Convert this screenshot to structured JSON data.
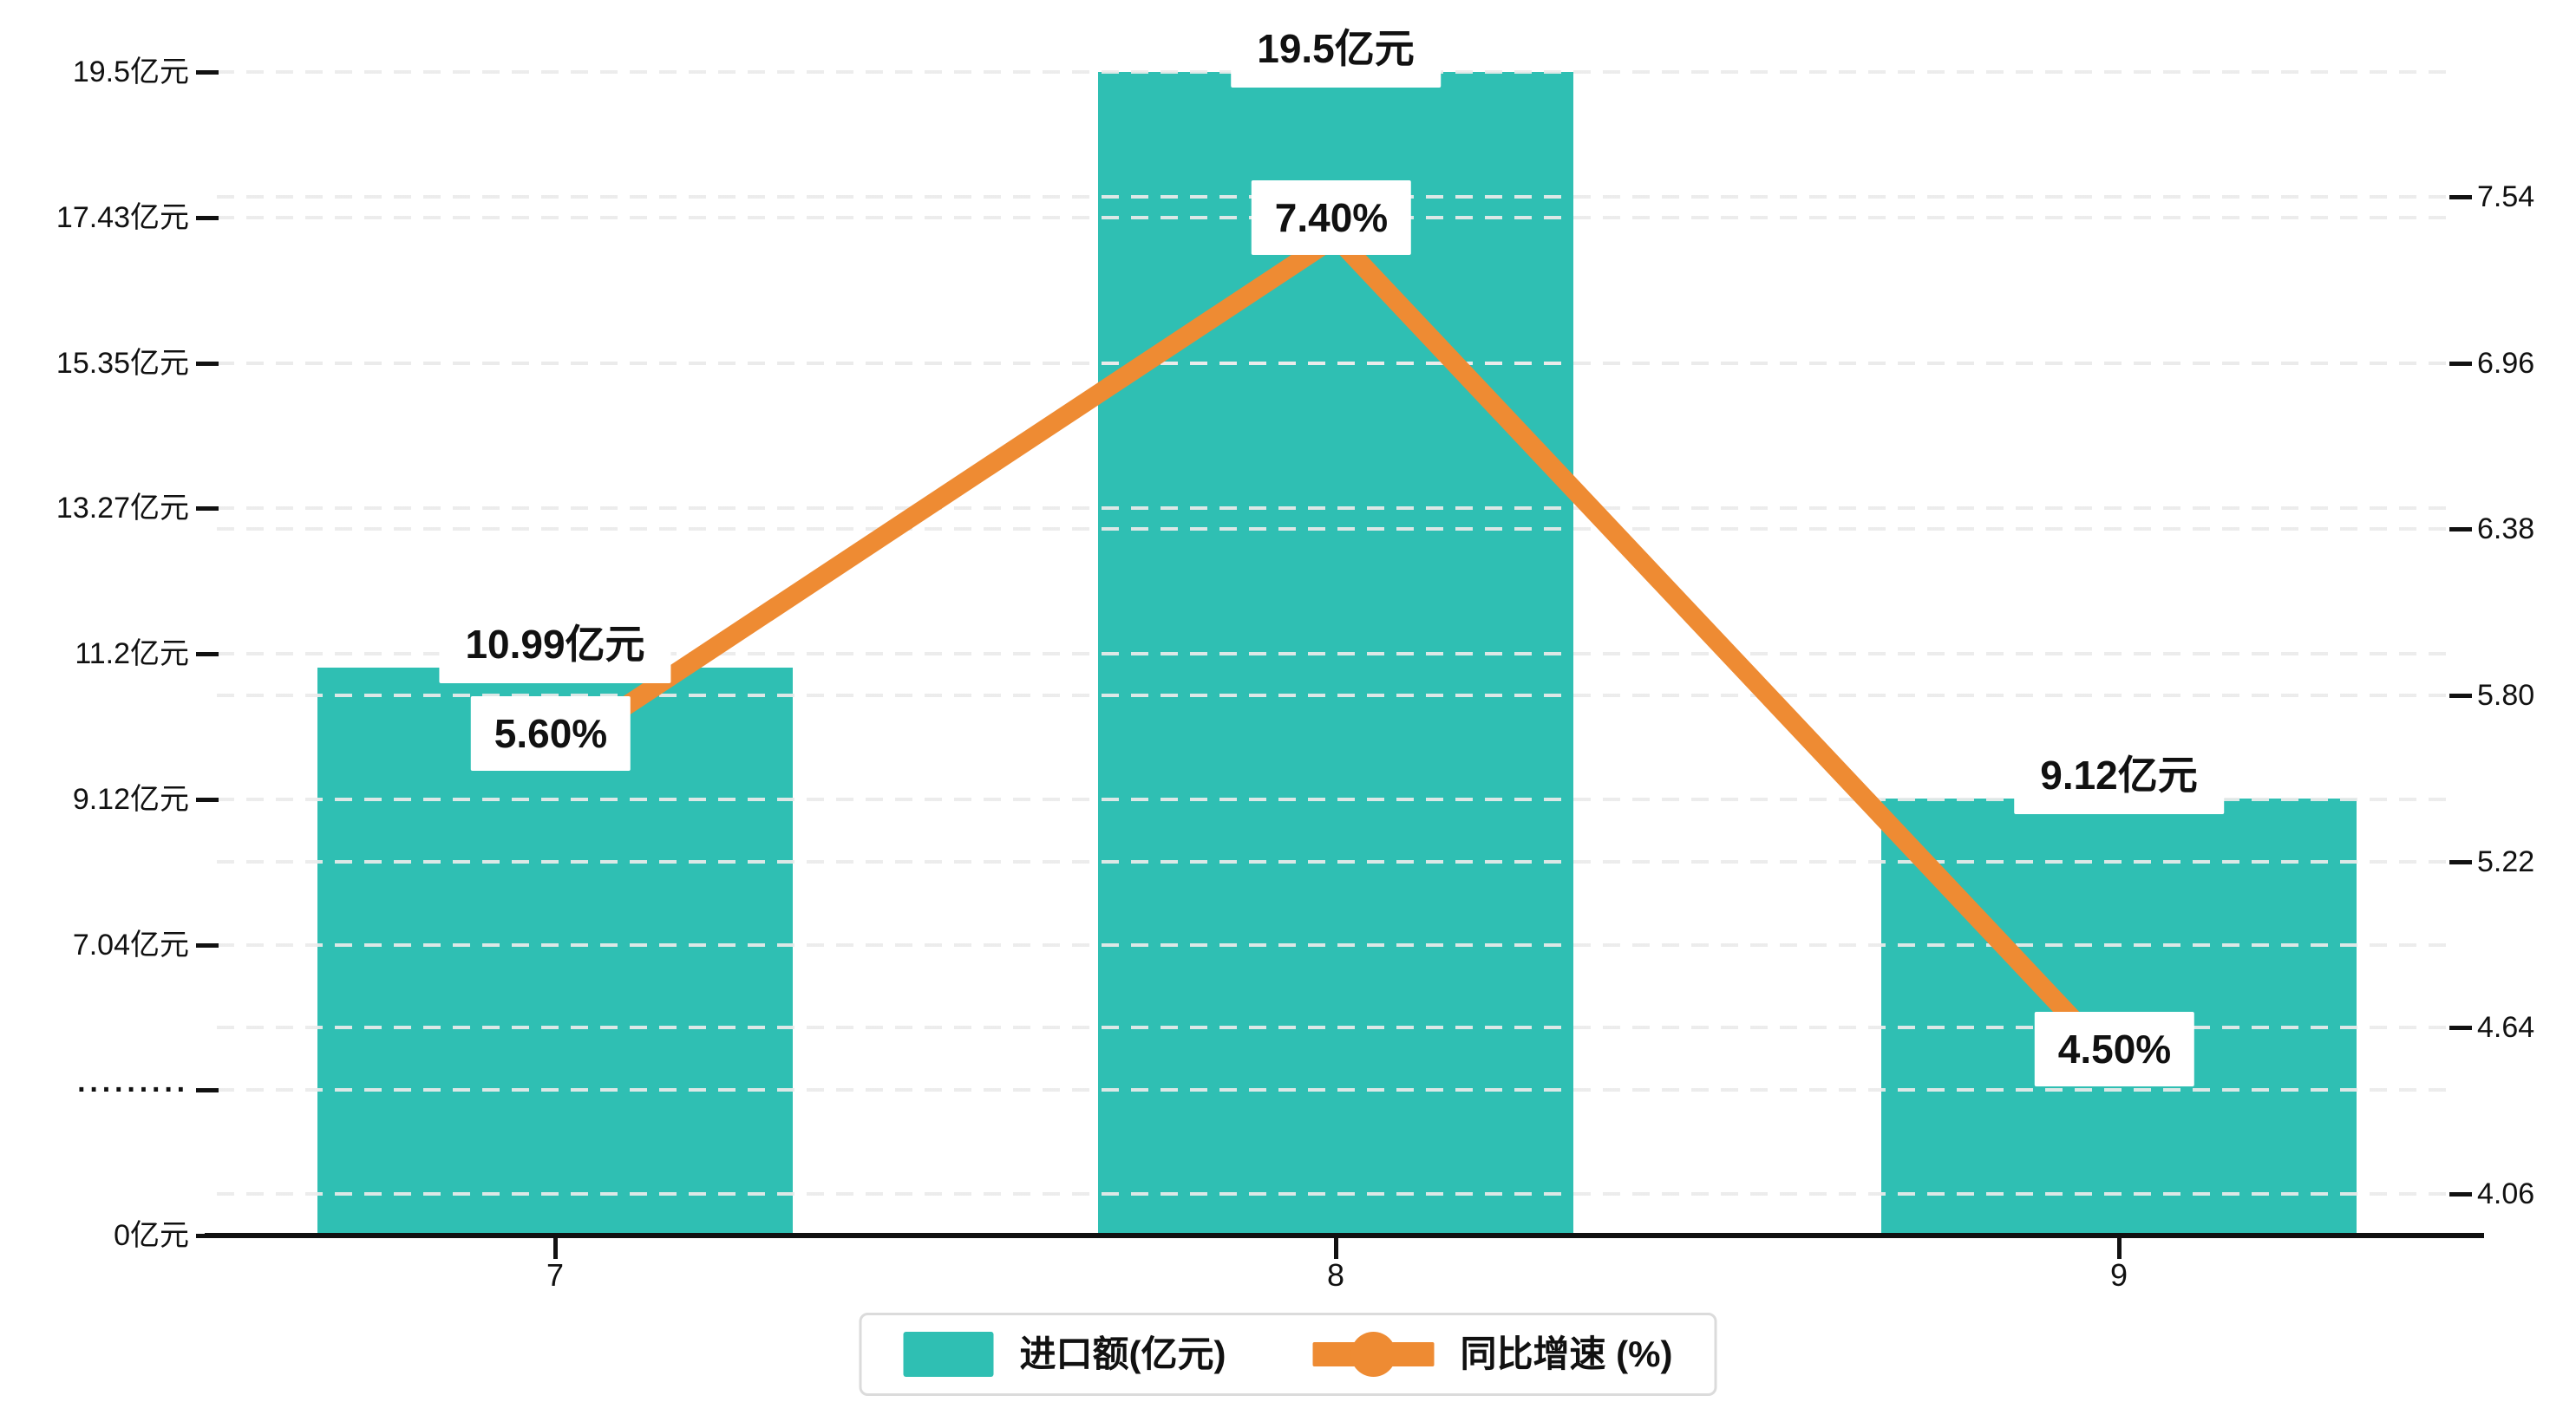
{
  "colors": {
    "bar": "#2FBFB3",
    "line": "#EE8B33",
    "grid": "#EBEBEB",
    "axis": "#111111",
    "text": "#111111",
    "label_bg": "#FFFFFF",
    "legend_border": "#DBDBDB",
    "background": "#FFFFFF"
  },
  "chart_data": {
    "type": "bar+line",
    "categories": [
      "7",
      "8",
      "9"
    ],
    "series": [
      {
        "name": "进口额(亿元)",
        "type": "bar",
        "axis": "left",
        "unit": "亿元",
        "values": [
          10.99,
          19.5,
          9.12
        ],
        "data_labels": [
          "10.99亿元",
          "19.5亿元",
          "9.12亿元"
        ]
      },
      {
        "name": "同比增速 (%)",
        "type": "line",
        "axis": "right",
        "unit": "%",
        "values": [
          5.6,
          7.4,
          4.5
        ],
        "data_labels": [
          "5.60%",
          "7.40%",
          "4.50%"
        ]
      }
    ],
    "left_axis": {
      "broken_axis": true,
      "tick_labels_top_to_bottom": [
        "19.5亿元",
        "17.43亿元",
        "15.35亿元",
        "13.27亿元",
        "11.2亿元",
        "9.12亿元",
        "7.04亿元",
        "·········",
        "0亿元"
      ],
      "tick_values_top_to_bottom": [
        19.5,
        17.43,
        15.35,
        13.27,
        11.2,
        9.12,
        7.04,
        null,
        0
      ]
    },
    "right_axis": {
      "tick_labels_top_to_bottom": [
        "7.54",
        "6.96",
        "6.38",
        "5.80",
        "5.22",
        "4.64",
        "4.06"
      ],
      "max": 7.54,
      "min": 4.06
    },
    "x_axis": {
      "tick_labels": [
        "7",
        "8",
        "9"
      ]
    },
    "legend": {
      "items": [
        {
          "label": "进口额(亿元)",
          "marker": "bar-swatch"
        },
        {
          "label": "同比增速 (%)",
          "marker": "line-dot-swatch"
        }
      ],
      "position": "bottom-center"
    },
    "grid": "horizontal dashed gridlines at both left-axis and right-axis tick positions"
  }
}
